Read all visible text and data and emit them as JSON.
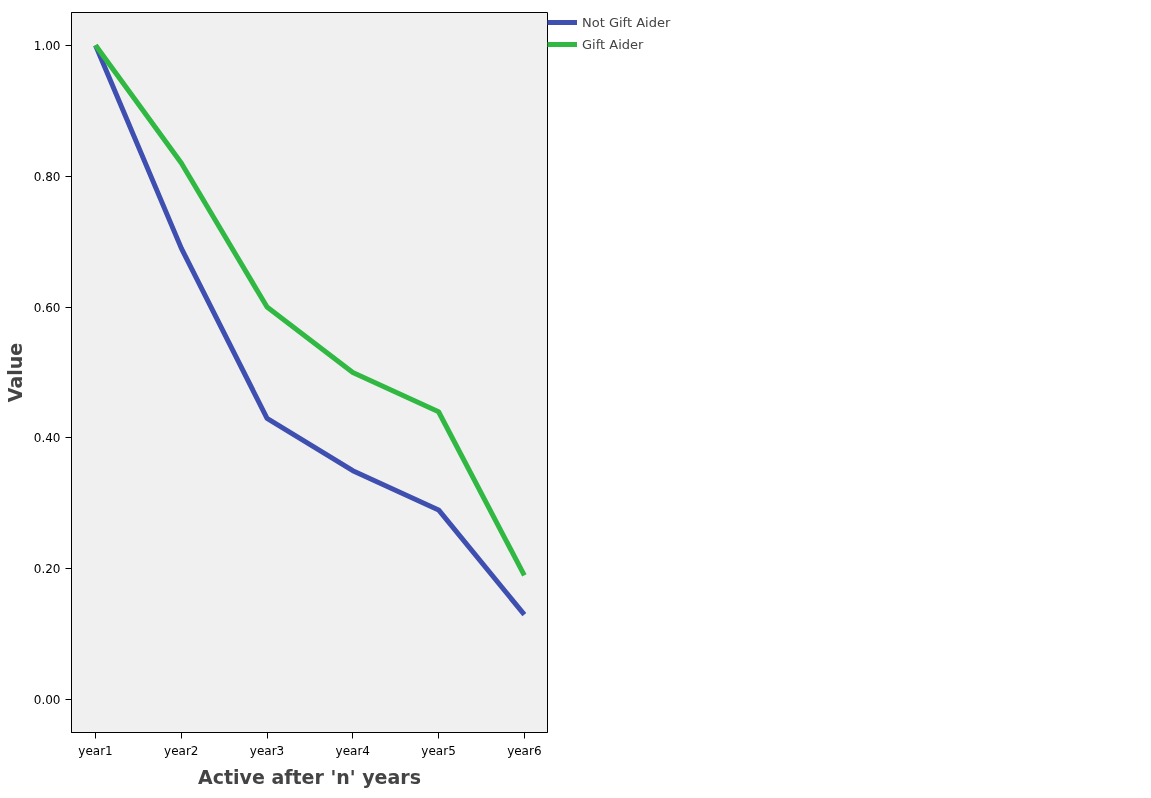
{
  "chart_data": {
    "type": "line",
    "xlabel": "Active after 'n' years",
    "ylabel": "Value",
    "categories": [
      "year1",
      "year2",
      "year3",
      "year4",
      "year5",
      "year6"
    ],
    "series": [
      {
        "name": "Not Gift Aider",
        "color": "#3f4fb0",
        "values": [
          1.0,
          0.69,
          0.43,
          0.35,
          0.29,
          0.13
        ]
      },
      {
        "name": "Gift Aider",
        "color": "#30b843",
        "values": [
          1.0,
          0.82,
          0.6,
          0.5,
          0.44,
          0.19
        ]
      }
    ],
    "ylim": [
      -0.05,
      1.05
    ],
    "yticks": [
      {
        "value": 0,
        "label": "0.00"
      },
      {
        "value": 0.2,
        "label": "0.20"
      },
      {
        "value": 0.4,
        "label": "0.40"
      },
      {
        "value": 0.6,
        "label": "0.60"
      },
      {
        "value": 0.8,
        "label": "0.80"
      },
      {
        "value": 1.0,
        "label": "1.00"
      }
    ],
    "grid": false,
    "legend": "top right",
    "line_style": "solid",
    "marker": "none"
  }
}
